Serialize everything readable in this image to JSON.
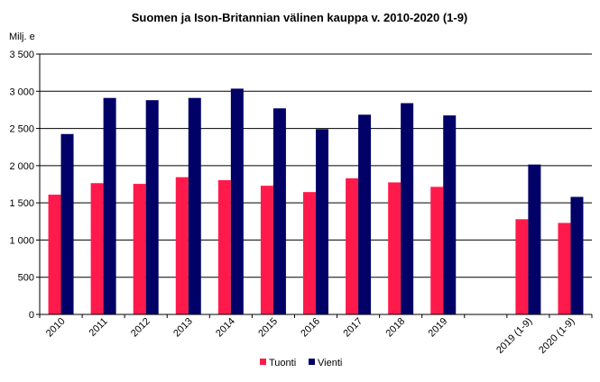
{
  "chart_data": {
    "type": "bar",
    "title": "Suomen ja Ison-Britannian välinen kauppa v. 2010-2020 (1-9)",
    "unit_label": "Milj. e",
    "categories": [
      "2010",
      "2011",
      "2012",
      "2013",
      "2014",
      "2015",
      "2016",
      "2017",
      "2018",
      "2019",
      "",
      "2019 (1-9)",
      "2020 (1-9)"
    ],
    "series": [
      {
        "name": "Tuonti",
        "color": "#ff1a4b",
        "values": [
          1610,
          1765,
          1755,
          1845,
          1805,
          1730,
          1645,
          1830,
          1775,
          1715,
          null,
          1280,
          1230
        ]
      },
      {
        "name": "Vienti",
        "color": "#000066",
        "values": [
          2425,
          2910,
          2880,
          2910,
          3035,
          2770,
          2490,
          2685,
          2840,
          2675,
          null,
          2015,
          1580
        ]
      }
    ],
    "ylim": [
      0,
      3500
    ],
    "yticks": [
      0,
      500,
      1000,
      1500,
      2000,
      2500,
      3000,
      3500
    ],
    "ytick_labels": [
      "0",
      "500",
      "1 000",
      "1 500",
      "2 000",
      "2 500",
      "3 000",
      "3 500"
    ],
    "grid": true,
    "legend_position": "bottom"
  }
}
